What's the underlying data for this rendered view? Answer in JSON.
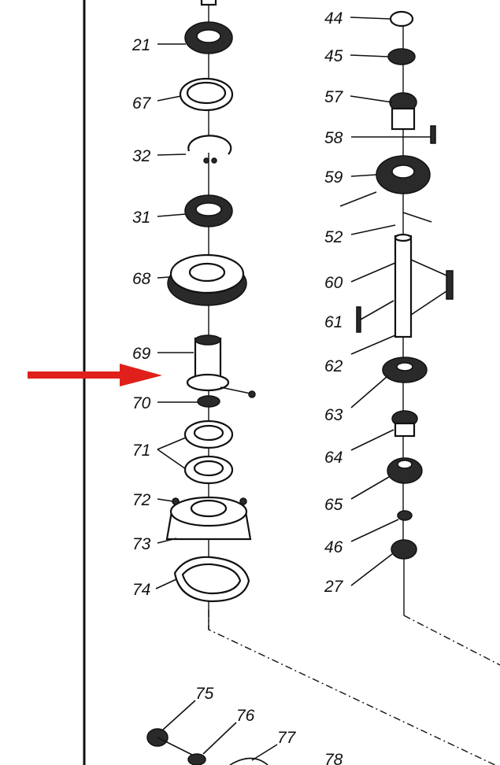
{
  "diagram": {
    "callouts": [
      {
        "id": "c-21-a",
        "text": "21"
      },
      {
        "id": "c-67",
        "text": "67"
      },
      {
        "id": "c-32",
        "text": "32"
      },
      {
        "id": "c-31",
        "text": "31"
      },
      {
        "id": "c-68",
        "text": "68"
      },
      {
        "id": "c-69",
        "text": "69"
      },
      {
        "id": "c-70",
        "text": "70"
      },
      {
        "id": "c-71",
        "text": "71"
      },
      {
        "id": "c-72",
        "text": "72"
      },
      {
        "id": "c-73",
        "text": "73"
      },
      {
        "id": "c-74",
        "text": "74"
      },
      {
        "id": "c-75",
        "text": "75"
      },
      {
        "id": "c-76",
        "text": "76"
      },
      {
        "id": "c-77",
        "text": "77"
      },
      {
        "id": "c-78",
        "text": "78"
      },
      {
        "id": "c-44",
        "text": "44"
      },
      {
        "id": "c-45",
        "text": "45"
      },
      {
        "id": "c-57",
        "text": "57"
      },
      {
        "id": "c-58",
        "text": "58"
      },
      {
        "id": "c-59",
        "text": "59"
      },
      {
        "id": "c-52",
        "text": "52"
      },
      {
        "id": "c-60",
        "text": "60"
      },
      {
        "id": "c-61",
        "text": "61"
      },
      {
        "id": "c-62",
        "text": "62"
      },
      {
        "id": "c-63",
        "text": "63"
      },
      {
        "id": "c-64",
        "text": "64"
      },
      {
        "id": "c-65",
        "text": "65"
      },
      {
        "id": "c-46",
        "text": "46"
      },
      {
        "id": "c-27",
        "text": "27"
      }
    ],
    "highlight_arrow_color": "#e0201b",
    "line_color": "#111111"
  }
}
